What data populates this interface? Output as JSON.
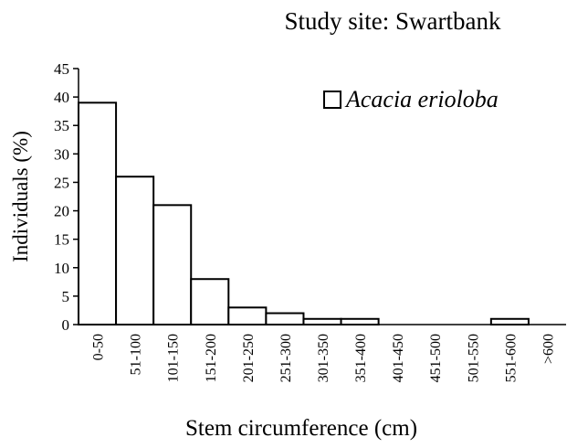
{
  "chart_data": {
    "type": "bar",
    "title": "Study site: Swartbank",
    "x_label": "Stem circumference (cm)",
    "y_label": "Individuals (%)",
    "categories": [
      "0-50",
      "51-100",
      "101-150",
      "151-200",
      "201-250",
      "251-300",
      "301-350",
      "351-400",
      "401-450",
      "451-500",
      "501-550",
      "551-600",
      ">600"
    ],
    "series": [
      {
        "name": "Acacia erioloba",
        "color": "#ffffff",
        "values": [
          39,
          26,
          21,
          8,
          3,
          2,
          1,
          1,
          0,
          0,
          0,
          1,
          0
        ]
      }
    ],
    "ylim": [
      0,
      45
    ],
    "yticks": [
      0,
      5,
      10,
      15,
      20,
      25,
      30,
      35,
      40,
      45
    ],
    "grid": false,
    "legend": "top-right"
  }
}
